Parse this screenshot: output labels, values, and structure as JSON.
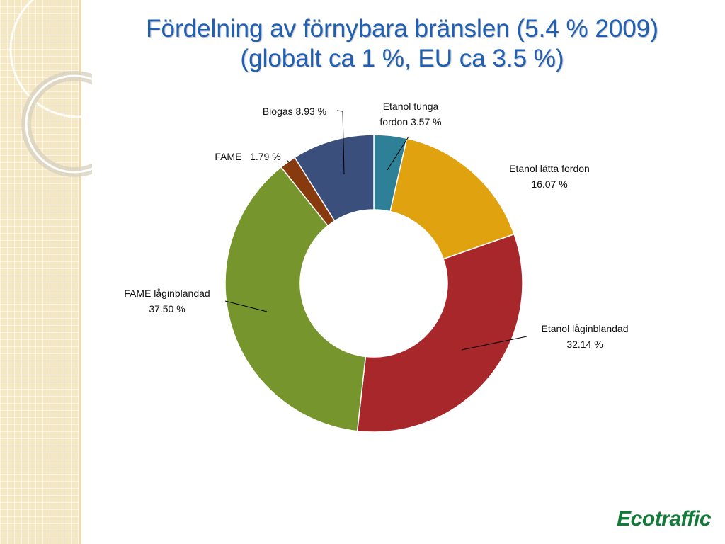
{
  "slide": {
    "title_line1": "Fördelning av förnybara bränslen (5.4 % 2009)",
    "title_line2": "(globalt ca 1 %, EU ca 3.5 %)",
    "logo_text": "Ecotraffic"
  },
  "colors": {
    "title": "#1f5fb4",
    "logo": "#137a3a",
    "panel": "#f3e7c4"
  },
  "chart_data": {
    "type": "pie",
    "donut": true,
    "start_angle_deg": 0,
    "direction": "clockwise",
    "slices": [
      {
        "label": "Etanol tunga fordon",
        "value": 3.57,
        "value_text": "3.57 %",
        "color": "#2e8096",
        "label_lines": [
          "Etanol tunga",
          "fordon 3.57 %"
        ]
      },
      {
        "label": "Etanol lätta fordon",
        "value": 16.07,
        "value_text": "16.07 %",
        "color": "#e0a20e",
        "label_lines": [
          "Etanol lätta fordon",
          "16.07 %"
        ]
      },
      {
        "label": "Etanol låginblandad",
        "value": 32.14,
        "value_text": "32.14 %",
        "color": "#a8272b",
        "label_lines": [
          "Etanol låginblandad",
          "32.14 %"
        ]
      },
      {
        "label": "FAME låginblandad",
        "value": 37.5,
        "value_text": "37.50 %",
        "color": "#76962d",
        "label_lines": [
          "FAME låginblandad",
          "37.50 %"
        ]
      },
      {
        "label": "FAME",
        "value": 1.79,
        "value_text": "1.79 %",
        "color": "#883a0f",
        "label_lines": [
          "FAME   1.79 %"
        ]
      },
      {
        "label": "Biogas",
        "value": 8.93,
        "value_text": "8.93 %",
        "color": "#3b4f7d",
        "label_lines": [
          "Biogas 8.93 %"
        ]
      }
    ]
  }
}
